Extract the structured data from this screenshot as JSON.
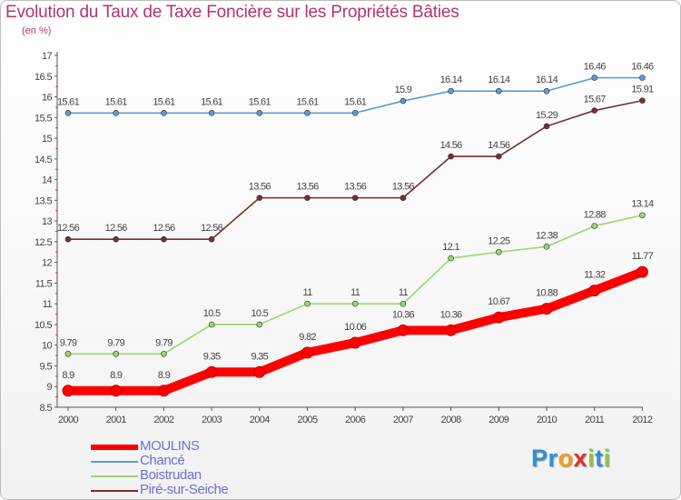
{
  "header": {
    "title": "Evolution du Taux de Taxe Foncière sur les Propriétés Bâties",
    "subtitle": "(en %)"
  },
  "chart_data": {
    "type": "line",
    "title": "Evolution du Taux de Taxe Foncière sur les Propriétés Bâties",
    "ylabel": "(en %)",
    "xlabel": "",
    "x": [
      "2000",
      "2001",
      "2002",
      "2003",
      "2004",
      "2005",
      "2006",
      "2007",
      "2008",
      "2009",
      "2010",
      "2011",
      "2012"
    ],
    "ylim": [
      8.5,
      17
    ],
    "yticks": [
      "8.5",
      "9",
      "9.5",
      "10",
      "10.5",
      "11",
      "11.5",
      "12",
      "12.5",
      "13",
      "13.5",
      "14",
      "14.5",
      "15",
      "15.5",
      "16",
      "16.5",
      "17"
    ],
    "grid": false,
    "legend_position": "bottom-left",
    "series": [
      {
        "name": "MOULINS",
        "color": "#ff0000",
        "values": [
          8.9,
          8.9,
          8.9,
          9.35,
          9.35,
          9.82,
          10.06,
          10.36,
          10.36,
          10.67,
          10.88,
          11.32,
          11.77
        ],
        "labels": [
          "8.9",
          "8.9",
          "8.9",
          "9.35",
          "9.35",
          "9.82",
          "10.06",
          "10.36",
          "10.36",
          "10.67",
          "10.88",
          "11.32",
          "11.77"
        ]
      },
      {
        "name": "Chancé",
        "color": "#5b9bd5",
        "values": [
          15.61,
          15.61,
          15.61,
          15.61,
          15.61,
          15.61,
          15.61,
          15.9,
          16.14,
          16.14,
          16.14,
          16.46,
          16.46
        ],
        "labels": [
          "15.61",
          "15.61",
          "15.61",
          "15.61",
          "15.61",
          "15.61",
          "15.61",
          "15.9",
          "16.14",
          "16.14",
          "16.14",
          "16.46",
          "16.46"
        ]
      },
      {
        "name": "Boistrudan",
        "color": "#9bd66a",
        "values": [
          9.79,
          9.79,
          9.79,
          10.5,
          10.5,
          11,
          11,
          11,
          12.1,
          12.25,
          12.38,
          12.88,
          13.14
        ],
        "labels": [
          "9.79",
          "9.79",
          "9.79",
          "10.5",
          "10.5",
          "11",
          "11",
          "11",
          "12.1",
          "12.25",
          "12.38",
          "12.88",
          "13.14"
        ]
      },
      {
        "name": "Piré-sur-Seiche",
        "color": "#7a2e2e",
        "values": [
          12.56,
          12.56,
          12.56,
          12.56,
          13.56,
          13.56,
          13.56,
          13.56,
          14.56,
          14.56,
          15.29,
          15.67,
          15.91
        ],
        "labels": [
          "12.56",
          "12.56",
          "12.56",
          "12.56",
          "13.56",
          "13.56",
          "13.56",
          "13.56",
          "14.56",
          "14.56",
          "15.29",
          "15.67",
          "15.91"
        ]
      }
    ]
  },
  "legend": {
    "items": [
      {
        "label": "MOULINS",
        "color": "#ff0000"
      },
      {
        "label": "Chancé",
        "color": "#5b9bd5"
      },
      {
        "label": "Boistrudan",
        "color": "#9bd66a"
      },
      {
        "label": "Piré-sur-Seiche",
        "color": "#7a2e2e"
      }
    ]
  },
  "logo": {
    "letters": [
      "P",
      "r",
      "o",
      "x",
      "i",
      "t",
      "i"
    ],
    "colors": [
      "#2f8fd8",
      "#2f8fd8",
      "#f0a020",
      "#e0302a",
      "#8cc63f",
      "#2f8fd8",
      "#8cc63f"
    ]
  }
}
